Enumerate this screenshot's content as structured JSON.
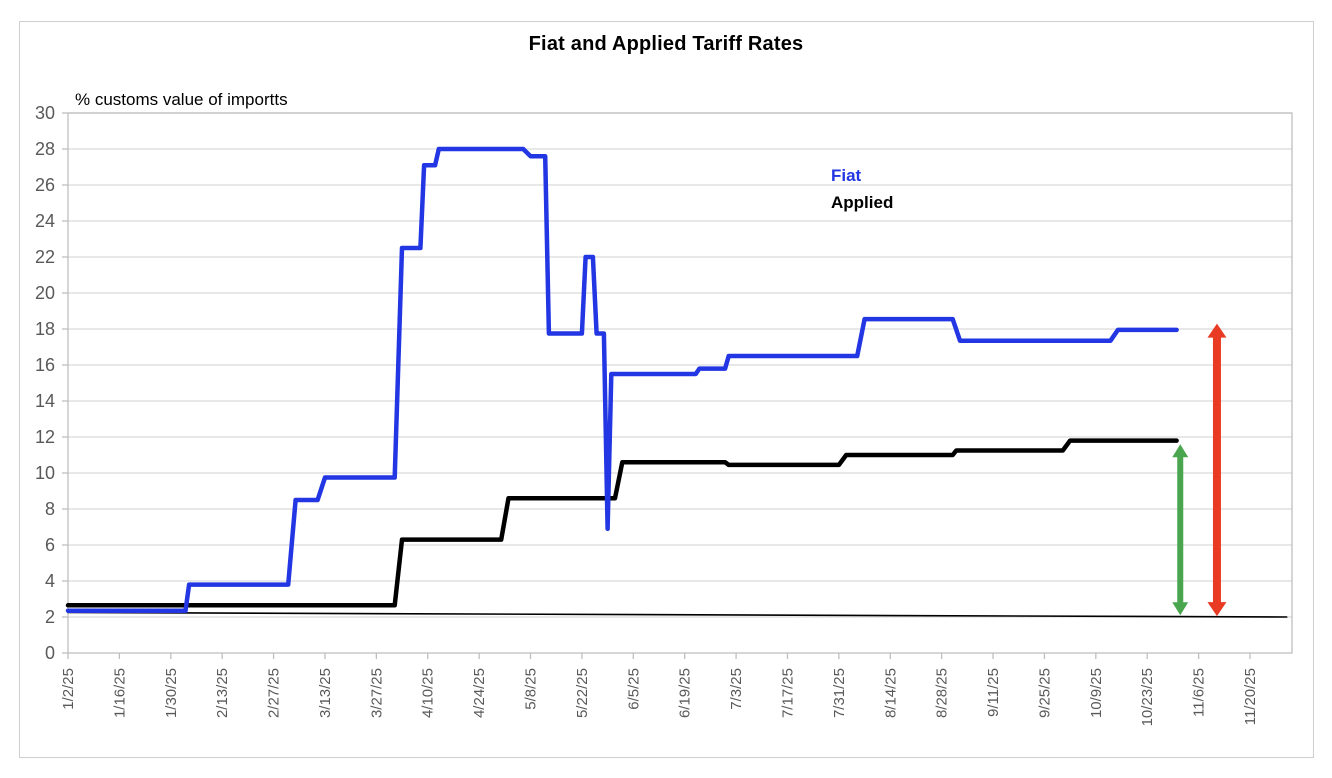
{
  "title": "Fiat and Applied Tariff Rates",
  "y_axis_note": "% customs value of importts",
  "legend": {
    "fiat_label": "Fiat",
    "applied_label": "Applied"
  },
  "colors": {
    "fiat_line": "#2236e3",
    "applied_line": "#000000",
    "baseline_line": "#000000",
    "gridline": "#d9d9d9",
    "plot_border": "#bfbfbf",
    "axis_text": "#595959",
    "green_arrow": "#4aa64e",
    "red_arrow": "#e93a23"
  },
  "chart_data": {
    "type": "line",
    "title": "Fiat and Applied Tariff Rates",
    "xlabel": "",
    "ylabel": "% customs value of importts",
    "ylim": [
      0,
      30
    ],
    "y_ticks": [
      0,
      2,
      4,
      6,
      8,
      10,
      12,
      14,
      16,
      18,
      20,
      22,
      24,
      26,
      28,
      30
    ],
    "x_tick_labels": [
      "1/2/25",
      "1/16/25",
      "1/30/25",
      "2/13/25",
      "2/27/25",
      "3/13/25",
      "3/27/25",
      "4/10/25",
      "4/24/25",
      "5/8/25",
      "5/22/25",
      "6/5/25",
      "6/19/25",
      "7/3/25",
      "7/17/25",
      "7/31/25",
      "8/14/25",
      "8/28/25",
      "9/11/25",
      "9/25/25",
      "10/9/25",
      "10/23/25",
      "11/6/25",
      "11/20/25"
    ],
    "x_start_date": "1/2/25",
    "x_tick_interval_days": 14,
    "grid": true,
    "legend_position": "inside-upper-middle",
    "series": [
      {
        "name": "Applied",
        "color": "#000000",
        "width": 4.5,
        "points": [
          [
            "1/2/25",
            2.65
          ],
          [
            "4/1/25",
            2.65
          ],
          [
            "4/3/25",
            6.3
          ],
          [
            "4/30/25",
            6.3
          ],
          [
            "5/2/25",
            8.6
          ],
          [
            "5/31/25",
            8.6
          ],
          [
            "6/2/25",
            10.6
          ],
          [
            "6/30/25",
            10.6
          ],
          [
            "7/1/25",
            10.45
          ],
          [
            "7/31/25",
            10.45
          ],
          [
            "8/2/25",
            11.0
          ],
          [
            "8/31/25",
            11.0
          ],
          [
            "9/1/25",
            11.25
          ],
          [
            "9/30/25",
            11.25
          ],
          [
            "10/2/25",
            11.8
          ],
          [
            "10/31/25",
            11.8
          ]
        ]
      },
      {
        "name": "Fiat",
        "color": "#2236e3",
        "width": 4.5,
        "points": [
          [
            "1/2/25",
            2.35
          ],
          [
            "2/3/25",
            2.35
          ],
          [
            "2/4/25",
            3.8
          ],
          [
            "3/3/25",
            3.8
          ],
          [
            "3/5/25",
            8.5
          ],
          [
            "3/11/25",
            8.5
          ],
          [
            "3/13/25",
            9.75
          ],
          [
            "4/1/25",
            9.75
          ],
          [
            "4/3/25",
            22.5
          ],
          [
            "4/8/25",
            22.5
          ],
          [
            "4/9/25",
            27.1
          ],
          [
            "4/12/25",
            27.1
          ],
          [
            "4/13/25",
            28.0
          ],
          [
            "5/6/25",
            28.0
          ],
          [
            "5/8/25",
            27.6
          ],
          [
            "5/12/25",
            27.6
          ],
          [
            "5/13/25",
            17.75
          ],
          [
            "5/22/25",
            17.75
          ],
          [
            "5/23/25",
            22.0
          ],
          [
            "5/25/25",
            22.0
          ],
          [
            "5/26/25",
            17.75
          ],
          [
            "5/28/25",
            17.75
          ],
          [
            "5/29/25",
            6.9
          ],
          [
            "5/30/25",
            15.5
          ],
          [
            "6/22/25",
            15.5
          ],
          [
            "6/23/25",
            15.8
          ],
          [
            "6/30/25",
            15.8
          ],
          [
            "7/1/25",
            16.5
          ],
          [
            "8/5/25",
            16.5
          ],
          [
            "8/7/25",
            18.55
          ],
          [
            "8/31/25",
            18.55
          ],
          [
            "9/2/25",
            17.35
          ],
          [
            "10/13/25",
            17.35
          ],
          [
            "10/15/25",
            17.95
          ],
          [
            "10/31/25",
            17.95
          ]
        ]
      },
      {
        "name": "baseline",
        "color": "#000000",
        "width": 1.6,
        "points": [
          [
            "1/2/25",
            2.25
          ],
          [
            "11/30/25",
            2.0
          ]
        ]
      }
    ],
    "annotations": {
      "arrows": [
        {
          "name": "applied-gap-arrow",
          "date": "11/1/25",
          "from": 2.1,
          "to": 11.6,
          "color": "#4aa64e",
          "shaft": 6,
          "head_w": 16,
          "head_l": 13
        },
        {
          "name": "fiat-gap-arrow",
          "date": "11/11/25",
          "from": 2.05,
          "to": 18.3,
          "color": "#e93a23",
          "shaft": 8,
          "head_w": 19,
          "head_l": 14
        }
      ]
    }
  }
}
